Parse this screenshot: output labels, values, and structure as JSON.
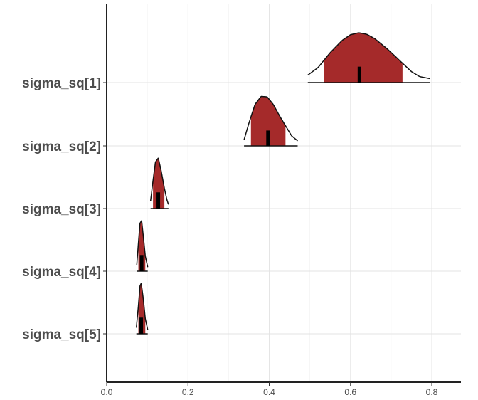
{
  "chart_data": {
    "type": "area",
    "subtype": "posterior density ridges (mcmc_areas)",
    "title": "",
    "xlabel": "",
    "ylabel": "",
    "xlim": [
      0.0,
      0.87
    ],
    "x_ticks": [
      "0.0",
      "0.2",
      "0.4",
      "0.6",
      "0.8"
    ],
    "x_tick_values": [
      0.0,
      0.2,
      0.4,
      0.6,
      0.8
    ],
    "grid": true,
    "legend": "none",
    "fill_color": "#a52a2a",
    "line_color": "#111111",
    "median_color": "#000000",
    "categories": [
      "sigma_sq[1]",
      "sigma_sq[2]",
      "sigma_sq[3]",
      "sigma_sq[4]",
      "sigma_sq[5]"
    ],
    "series": [
      {
        "name": "sigma_sq[1]",
        "median": 0.622,
        "inner_interval": [
          0.535,
          0.728
        ],
        "outer_interval": [
          0.495,
          0.795
        ],
        "density_x": [
          0.495,
          0.52,
          0.55,
          0.58,
          0.6,
          0.62,
          0.64,
          0.66,
          0.69,
          0.72,
          0.75,
          0.77,
          0.795
        ],
        "density_y": [
          0.15,
          0.3,
          0.6,
          0.85,
          0.96,
          1.0,
          0.97,
          0.88,
          0.68,
          0.45,
          0.22,
          0.12,
          0.08
        ]
      },
      {
        "name": "sigma_sq[2]",
        "median": 0.397,
        "inner_interval": [
          0.355,
          0.44
        ],
        "outer_interval": [
          0.338,
          0.47
        ],
        "density_x": [
          0.338,
          0.35,
          0.365,
          0.38,
          0.395,
          0.41,
          0.425,
          0.44,
          0.455,
          0.47
        ],
        "density_y": [
          0.12,
          0.45,
          0.82,
          0.98,
          0.97,
          0.82,
          0.6,
          0.4,
          0.2,
          0.1
        ]
      },
      {
        "name": "sigma_sq[3]",
        "median": 0.127,
        "inner_interval": [
          0.114,
          0.142
        ],
        "outer_interval": [
          0.108,
          0.152
        ],
        "density_x": [
          0.108,
          0.114,
          0.12,
          0.127,
          0.134,
          0.142,
          0.148,
          0.152
        ],
        "density_y": [
          0.15,
          0.55,
          0.92,
          1.0,
          0.75,
          0.4,
          0.18,
          0.08
        ]
      },
      {
        "name": "sigma_sq[4]",
        "median": 0.086,
        "inner_interval": [
          0.078,
          0.095
        ],
        "outer_interval": [
          0.074,
          0.101
        ],
        "density_x": [
          0.074,
          0.078,
          0.082,
          0.086,
          0.09,
          0.095,
          0.101
        ],
        "density_y": [
          0.12,
          0.55,
          0.95,
          1.0,
          0.7,
          0.3,
          0.08
        ]
      },
      {
        "name": "sigma_sq[5]",
        "median": 0.085,
        "inner_interval": [
          0.078,
          0.095
        ],
        "outer_interval": [
          0.073,
          0.101
        ],
        "density_x": [
          0.073,
          0.078,
          0.082,
          0.085,
          0.09,
          0.095,
          0.101
        ],
        "density_y": [
          0.12,
          0.55,
          0.95,
          1.0,
          0.7,
          0.3,
          0.08
        ]
      }
    ]
  }
}
